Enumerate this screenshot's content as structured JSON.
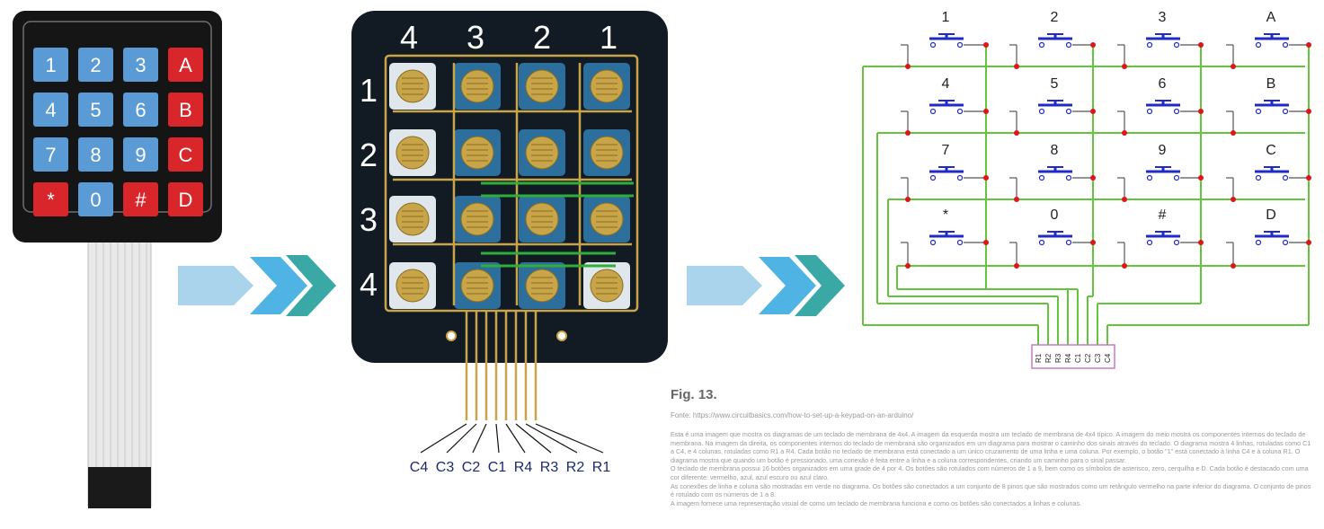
{
  "keypad_keys": [
    {
      "label": "1",
      "kind": "blue"
    },
    {
      "label": "2",
      "kind": "blue"
    },
    {
      "label": "3",
      "kind": "blue"
    },
    {
      "label": "A",
      "kind": "red"
    },
    {
      "label": "4",
      "kind": "blue"
    },
    {
      "label": "5",
      "kind": "blue"
    },
    {
      "label": "6",
      "kind": "blue"
    },
    {
      "label": "B",
      "kind": "red"
    },
    {
      "label": "7",
      "kind": "blue"
    },
    {
      "label": "8",
      "kind": "blue"
    },
    {
      "label": "9",
      "kind": "blue"
    },
    {
      "label": "C",
      "kind": "red"
    },
    {
      "label": "*",
      "kind": "red"
    },
    {
      "label": "0",
      "kind": "blue"
    },
    {
      "label": "#",
      "kind": "red"
    },
    {
      "label": "D",
      "kind": "red"
    }
  ],
  "membrane": {
    "col_labels": [
      "4",
      "3",
      "2",
      "1"
    ],
    "row_labels": [
      "1",
      "2",
      "3",
      "4"
    ],
    "pin_labels": [
      "C4",
      "C3",
      "C2",
      "C1",
      "R4",
      "R3",
      "R2",
      "R1"
    ]
  },
  "schematic": {
    "button_labels": [
      "1",
      "2",
      "3",
      "A",
      "4",
      "5",
      "6",
      "B",
      "7",
      "8",
      "9",
      "C",
      "*",
      "0",
      "#",
      "D"
    ],
    "connector_pins": [
      "R1",
      "R2",
      "R3",
      "R4",
      "C1",
      "C2",
      "C3",
      "C4"
    ]
  },
  "figure": {
    "title": "Fig. 13.",
    "source": "Fonte: https://www.circuitbasics.com/how-to-set-up-a-keypad-on-an-arduino/",
    "paragraphs": [
      "Esta é uma imagem que mostra os diagramas de um teclado de membrana de 4x4. A imagem da esquerda mostra um teclado de membrana de 4x4 típico. A imagem do meio mostra os componentes internos do teclado de membrana. Na imagem da direita, os componentes internos do teclado de membrana são organizados em um diagrama para mostrar o caminho dos sinais através do teclado. O diagrama mostra 4 linhas, rotuladas como C1 a C4, e 4 colunas, rotuladas como R1 a R4. Cada botão no teclado de membrana está conectado a um único cruzamento de uma linha e uma coluna. Por exemplo, o botão \"1\" está conectado à linha C4 e à coluna R1. O diagrama mostra que quando um botão é pressionado, uma conexão é feita entre a linha e a coluna correspondentes, criando um caminho para o sinal passar.",
      "O teclado de membrana possui 16 botões organizados em uma grade de 4 por 4. Os botões são rotulados com números de 1 a 9, bem como os símbolos de asterisco, zero, cerquilha e D. Cada botão é destacado com uma cor diferente: vermelho, azul, azul escuro ou azul claro.",
      "As conexões de linha e coluna são mostradas em verde no diagrama. Os botões são conectados a um conjunto de 8 pinos que são mostrados como um retângulo vermelho na parte inferior do diagrama. O conjunto de pinos é rotulado com os números de 1 a 8.",
      "A imagem fornece uma representação visual de como um teclado de membrana funciona e como os botões são conectados a linhas e colunas."
    ]
  },
  "colors": {
    "key_blue": "#5b9bd5",
    "key_red": "#d9262b",
    "wire_green": "#63c53b",
    "button_blue": "#1f2ac8",
    "junction_red": "#e0141a",
    "connector_pink": "#c879c8",
    "arrow_light": "#a9d4ec",
    "arrow_mid": "#4fb3e3",
    "arrow_teal": "#3aa9a6"
  }
}
